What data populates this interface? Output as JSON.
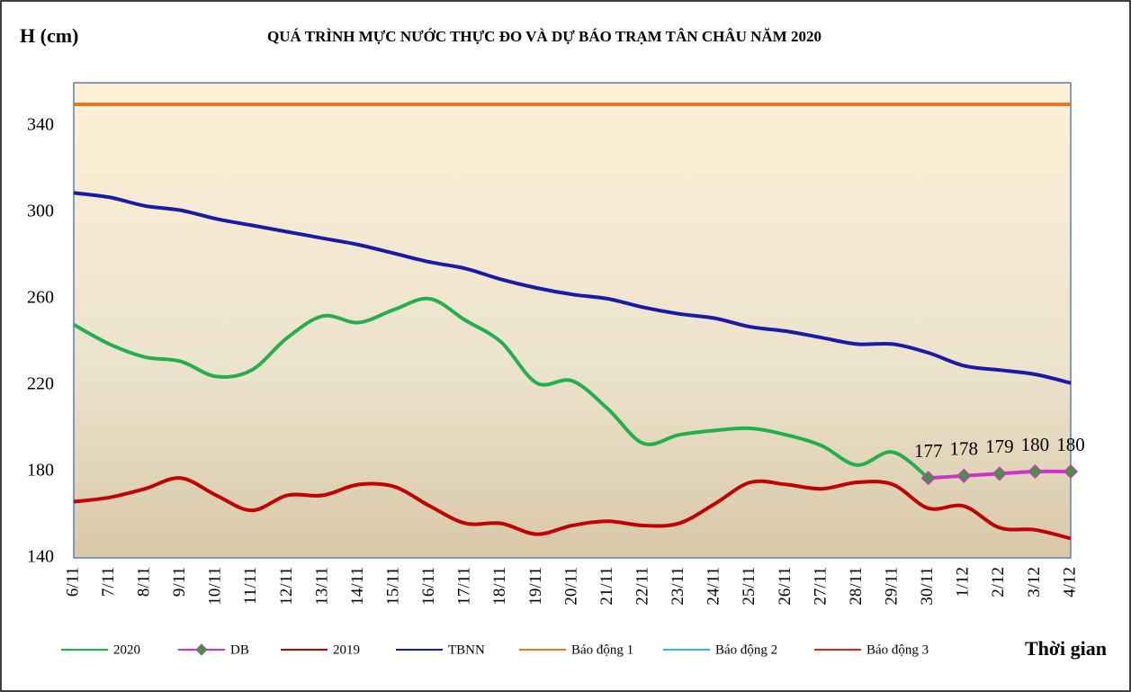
{
  "chart_data": {
    "type": "line",
    "y_label": "H (cm)",
    "title": "QUÁ TRÌNH MỰC NƯỚC THỰC ĐO VÀ DỰ BÁO TRẠM TÂN CHÂU NĂM 2020",
    "x_label": "Thời gian",
    "categories": [
      "6/11",
      "7/11",
      "8/11",
      "9/11",
      "10/11",
      "11/11",
      "12/11",
      "13/11",
      "14/11",
      "15/11",
      "16/11",
      "17/11",
      "18/11",
      "19/11",
      "20/11",
      "21/11",
      "22/11",
      "23/11",
      "24/11",
      "25/11",
      "26/11",
      "27/11",
      "28/11",
      "29/11",
      "30/11",
      "1/12",
      "2/12",
      "3/12",
      "4/12"
    ],
    "ylim": [
      140,
      360
    ],
    "yticks": [
      140,
      180,
      220,
      260,
      300,
      340
    ],
    "grid": false,
    "legend": "bottom",
    "series": [
      {
        "name": "2020",
        "color": "#22b04c",
        "values": [
          248,
          239,
          233,
          231,
          224,
          227,
          242,
          252,
          249,
          255,
          260,
          250,
          240,
          221,
          222,
          209,
          193,
          197,
          199,
          200,
          197,
          192,
          183,
          189,
          177,
          null,
          null,
          null,
          null
        ]
      },
      {
        "name": "DB",
        "color": "#cc33cc",
        "marker": "#3a9a3a",
        "show_values": true,
        "values": [
          null,
          null,
          null,
          null,
          null,
          null,
          null,
          null,
          null,
          null,
          null,
          null,
          null,
          null,
          null,
          null,
          null,
          null,
          null,
          null,
          null,
          null,
          null,
          null,
          177,
          178,
          179,
          180,
          180
        ]
      },
      {
        "name": "2019",
        "color": "#c00000",
        "values": [
          166,
          168,
          172,
          177,
          169,
          162,
          169,
          169,
          174,
          173,
          164,
          156,
          156,
          151,
          155,
          157,
          155,
          156,
          165,
          175,
          174,
          172,
          175,
          174,
          163,
          164,
          154,
          153,
          149
        ]
      },
      {
        "name": "TBNN",
        "color": "#1a1aa8",
        "values": [
          309,
          307,
          303,
          301,
          297,
          294,
          291,
          288,
          285,
          281,
          277,
          274,
          269,
          265,
          262,
          260,
          256,
          253,
          251,
          247,
          245,
          242,
          239,
          239,
          235,
          229,
          227,
          225,
          221
        ]
      },
      {
        "name": "Báo động 1",
        "color": "#e87722",
        "values": [
          350,
          350,
          350,
          350,
          350,
          350,
          350,
          350,
          350,
          350,
          350,
          350,
          350,
          350,
          350,
          350,
          350,
          350,
          350,
          350,
          350,
          350,
          350,
          350,
          350,
          350,
          350,
          350,
          350
        ]
      },
      {
        "name": "Báo động 2",
        "color": "#33b5e5",
        "values": [
          null,
          null,
          null,
          null,
          null,
          null,
          null,
          null,
          null,
          null,
          null,
          null,
          null,
          null,
          null,
          null,
          null,
          null,
          null,
          null,
          null,
          null,
          null,
          null,
          null,
          null,
          null,
          null,
          null
        ]
      },
      {
        "name": "Báo động 3",
        "color": "#e02020",
        "values": [
          null,
          null,
          null,
          null,
          null,
          null,
          null,
          null,
          null,
          null,
          null,
          null,
          null,
          null,
          null,
          null,
          null,
          null,
          null,
          null,
          null,
          null,
          null,
          null,
          null,
          null,
          null,
          null,
          null
        ]
      }
    ]
  }
}
